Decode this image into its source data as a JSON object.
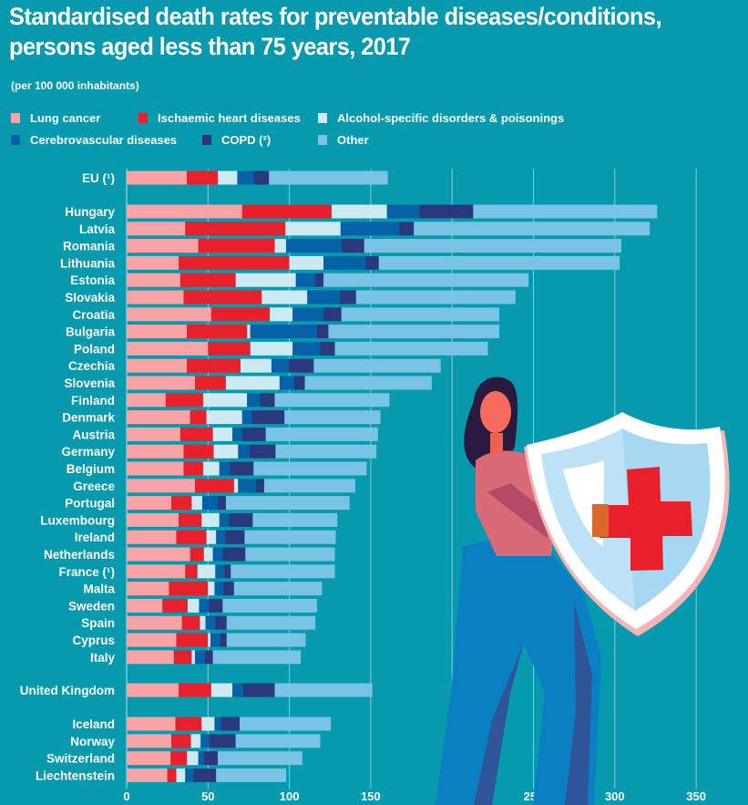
{
  "header": {
    "title_line1": "Standardised death rates for preventable diseases/conditions,",
    "title_line2": "persons aged less than 75 years, 2017",
    "subtitle": "(per 100 000 inhabitants)"
  },
  "colors": {
    "background": "#079aaf",
    "lung_cancer": "#f9a3a6",
    "ischaemic_heart": "#e8202b",
    "alcohol": "#cde9f2",
    "cerebrovascular": "#0662a6",
    "copd": "#2a397e",
    "other": "#79c3e4",
    "gridline": "#7fd0dc"
  },
  "legend": [
    {
      "label": "Lung cancer",
      "color": "#f9a3a6"
    },
    {
      "label": "Ischaemic heart diseases",
      "color": "#e8202b"
    },
    {
      "label": "Alcohol-specific disorders & poisonings",
      "color": "#cde9f2"
    },
    {
      "label": "Cerebrovascular diseases",
      "color": "#0662a6"
    },
    {
      "label": "COPD (²)",
      "color": "#2a397e"
    },
    {
      "label": "Other",
      "color": "#79c3e4"
    }
  ],
  "chart_data": {
    "type": "bar",
    "orientation": "horizontal",
    "stacked": true,
    "title": "Standardised death rates for preventable diseases/conditions, persons aged less than 75 years, 2017",
    "subtitle": "(per 100 000 inhabitants)",
    "xlabel": "",
    "ylabel": "",
    "xlim": [
      0,
      370
    ],
    "xticks": [
      0,
      50,
      100,
      150,
      200,
      250,
      300,
      350
    ],
    "grid": true,
    "legend_position": "top",
    "series_names": [
      "Lung cancer",
      "Ischaemic heart diseases",
      "Alcohol-specific disorders & poisonings",
      "Cerebrovascular diseases",
      "COPD (²)",
      "Other"
    ],
    "groups": [
      {
        "name": "EU",
        "categories": [
          "EU (¹)"
        ]
      },
      {
        "name": "EU members",
        "categories": [
          "Hungary",
          "Latvia",
          "Romania",
          "Lithuania",
          "Estonia",
          "Slovakia",
          "Croatia",
          "Bulgaria",
          "Poland",
          "Czechia",
          "Slovenia",
          "Finland",
          "Denmark",
          "Austria",
          "Germany",
          "Belgium",
          "Greece",
          "Portugal",
          "Luxembourg",
          "Ireland",
          "Netherlands",
          "France (¹)",
          "Malta",
          "Sweden",
          "Spain",
          "Cyprus",
          "Italy"
        ]
      },
      {
        "name": "UK",
        "categories": [
          "United Kingdom"
        ]
      },
      {
        "name": "EFTA",
        "categories": [
          "Iceland",
          "Norway",
          "Switzerland",
          "Liechtenstein"
        ]
      }
    ],
    "categories": [
      "EU (¹)",
      "Hungary",
      "Latvia",
      "Romania",
      "Lithuania",
      "Estonia",
      "Slovakia",
      "Croatia",
      "Bulgaria",
      "Poland",
      "Czechia",
      "Slovenia",
      "Finland",
      "Denmark",
      "Austria",
      "Germany",
      "Belgium",
      "Greece",
      "Portugal",
      "Luxembourg",
      "Ireland",
      "Netherlands",
      "France (¹)",
      "Malta",
      "Sweden",
      "Spain",
      "Cyprus",
      "Italy",
      "United Kingdom",
      "Iceland",
      "Norway",
      "Switzerland",
      "Liechtenstein"
    ],
    "series": [
      {
        "name": "Lung cancer",
        "values": [
          37,
          71,
          36,
          44,
          32,
          33,
          35,
          52,
          37,
          50,
          37,
          42,
          24,
          39,
          33,
          35,
          35,
          42,
          27.5,
          32,
          30.5,
          39,
          36,
          26,
          22,
          34,
          30.5,
          29,
          32,
          30,
          27.5,
          27,
          25
        ]
      },
      {
        "name": "Ischaemic heart diseases",
        "values": [
          19,
          55,
          61.5,
          47,
          68,
          34,
          48,
          36,
          37,
          26,
          33,
          19,
          23,
          10,
          20,
          18.5,
          12,
          24,
          12.5,
          14,
          18.5,
          8.5,
          7.5,
          24,
          15.5,
          11,
          19.5,
          11,
          20,
          16,
          12,
          10,
          5.5
        ]
      },
      {
        "name": "Alcohol-specific disorders & poisonings",
        "values": [
          12,
          34,
          34,
          7,
          21,
          37,
          28,
          14,
          2,
          26,
          19,
          33,
          27,
          22,
          12,
          15,
          10,
          2.5,
          6.5,
          11,
          6,
          5.5,
          11,
          4,
          7,
          3.5,
          1.5,
          2,
          13,
          8,
          6,
          7,
          5.5
        ]
      },
      {
        "name": "Cerebrovascular diseases",
        "values": [
          10,
          20,
          36,
          34,
          26,
          12,
          20,
          19,
          41,
          17,
          10.5,
          9,
          8,
          6,
          6,
          7,
          6.5,
          11,
          9.5,
          6,
          5.5,
          6,
          5.5,
          5.5,
          6,
          6,
          6,
          6,
          6.5,
          4,
          5.5,
          3.5,
          5
        ]
      },
      {
        "name": "COPD (²)",
        "values": [
          9.5,
          33,
          9,
          14,
          8,
          5,
          10,
          11,
          7,
          9,
          15.5,
          6.5,
          9,
          20,
          14.5,
          16,
          14.5,
          5,
          5,
          14.5,
          12,
          14,
          4,
          6.5,
          8.5,
          7,
          4,
          5,
          19.5,
          11.5,
          16,
          8.5,
          14
        ]
      },
      {
        "name": "Other",
        "values": [
          73,
          113,
          145,
          158,
          148,
          126,
          98,
          97,
          105,
          94,
          78,
          78,
          70.5,
          59,
          69,
          62,
          69.5,
          56,
          76,
          52,
          56,
          55,
          64,
          54,
          58,
          54.5,
          48.5,
          54,
          60,
          56,
          52,
          52,
          43
        ]
      }
    ]
  },
  "illustration": {
    "description": "Woman holding a medical shield with a red cross",
    "icon": "medical-shield-icon"
  }
}
